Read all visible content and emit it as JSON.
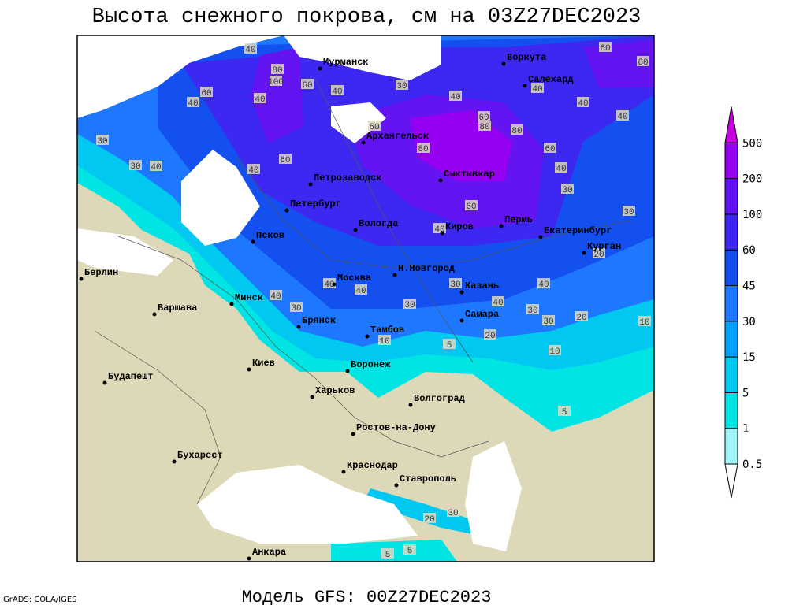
{
  "header": {
    "title": "Высота снежного покрова, см на 03Z27DEC2023"
  },
  "footer": {
    "model": "Модель GFS: 00Z27DEC2023",
    "credit": "GrADS: COLA/IGES"
  },
  "legend": {
    "levels": [
      0.5,
      1,
      5,
      15,
      30,
      45,
      60,
      100,
      200,
      500
    ],
    "colors": [
      "#ffffff",
      "#a0f4fa",
      "#00e4e4",
      "#00c8f0",
      "#00a0ff",
      "#1e78ff",
      "#1450f0",
      "#3c28f0",
      "#6414f0",
      "#9600f0",
      "#c800e0"
    ]
  },
  "cities": [
    "Мурманск",
    "Воркута",
    "Салехард",
    "Архангельск",
    "Петрозаводск",
    "Сыктывкар",
    "Петербург",
    "Вологда",
    "Псков",
    "Киров",
    "Пермь",
    "Екатеринбург",
    "Курган",
    "Берлин",
    "Н.Новгород",
    "Москва",
    "Казань",
    "Минск",
    "Варшава",
    "Самара",
    "Брянск",
    "Тамбов",
    "Киев",
    "Воронеж",
    "Будапешт",
    "Харьков",
    "Волгоград",
    "Ростов-на-Дону",
    "Бухарест",
    "Краснодар",
    "Ставрополь",
    "Анкара"
  ],
  "contour_labels": [
    40,
    80,
    100,
    60,
    40,
    60,
    40,
    40,
    30,
    40,
    30,
    40,
    60,
    60,
    80,
    60,
    80,
    80,
    60,
    40,
    30,
    30,
    40,
    40,
    40,
    60,
    60,
    40,
    30,
    60,
    40,
    40,
    20,
    30,
    40,
    40,
    40,
    40,
    30,
    30,
    30,
    30,
    20,
    10,
    10,
    5,
    20,
    10,
    5,
    20,
    30,
    5,
    5
  ]
}
